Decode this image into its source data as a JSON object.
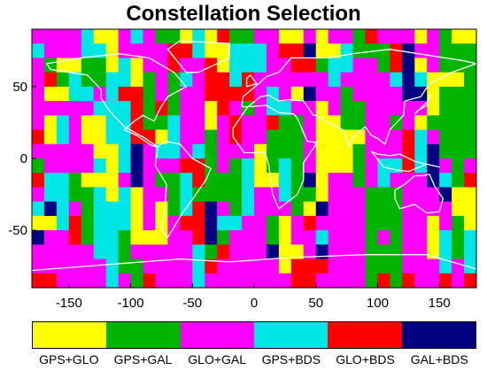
{
  "title": "Constellation Selection",
  "colors": {
    "GPS+GLO": "#ffff00",
    "GPS+GAL": "#00b400",
    "GLO+GAL": "#ff00ff",
    "GPS+BDS": "#00e6e6",
    "GLO+BDS": "#ff0000",
    "GAL+BDS": "#000080",
    "coastline": "#ffffff"
  },
  "legend": [
    {
      "label": "GPS+GLO",
      "color": "#ffff00"
    },
    {
      "label": "GPS+GAL",
      "color": "#00b400"
    },
    {
      "label": "GLO+GAL",
      "color": "#ff00ff"
    },
    {
      "label": "GPS+BDS",
      "color": "#00e6e6"
    },
    {
      "label": "GLO+BDS",
      "color": "#ff0000"
    },
    {
      "label": "GAL+BDS",
      "color": "#000080"
    }
  ],
  "chart_data": {
    "type": "heatmap",
    "title": "Constellation Selection",
    "x_ticks": [
      -150,
      -100,
      -50,
      0,
      50,
      100,
      150
    ],
    "y_ticks": [
      50,
      0,
      -50
    ],
    "xlim": [
      -180,
      180
    ],
    "ylim": [
      -90,
      90
    ],
    "categories": [
      "GPS+GLO",
      "GPS+GAL",
      "GLO+GAL",
      "GPS+BDS",
      "GLO+BDS",
      "GAL+BDS"
    ]
  }
}
